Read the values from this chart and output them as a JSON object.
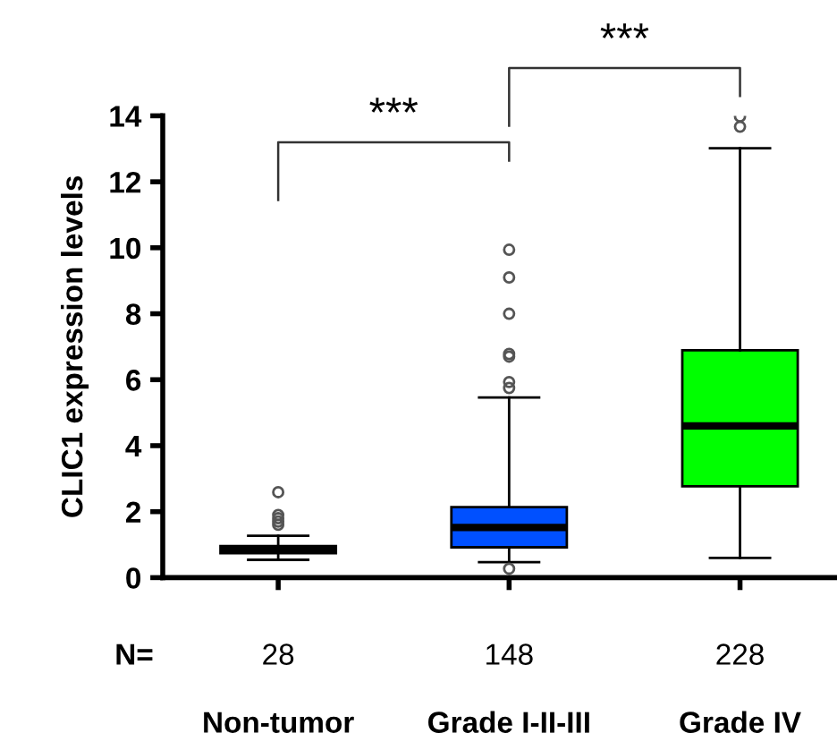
{
  "chart_data": {
    "type": "box",
    "ylabel": "CLIC1 expression levels",
    "categories": [
      "Non-tumor",
      "Grade I-II-III",
      "Grade IV"
    ],
    "colors": [
      "#8b0000",
      "#0050ff",
      "#00ff00"
    ],
    "boxes": [
      {
        "low": 0.54,
        "q1": 0.74,
        "median": 0.85,
        "q3": 0.96,
        "high": 1.27,
        "outliers": [
          1.6,
          1.7,
          1.8,
          1.9,
          2.59
        ]
      },
      {
        "low": 0.47,
        "q1": 0.92,
        "median": 1.52,
        "q3": 2.14,
        "high": 5.46,
        "outliers": [
          0.27,
          5.75,
          5.93,
          6.7,
          6.78,
          8.0,
          9.1,
          9.94
        ]
      },
      {
        "low": 0.6,
        "q1": 2.77,
        "median": 4.6,
        "q3": 6.89,
        "high": 13.02,
        "outliers": [
          13.67,
          13.98
        ]
      }
    ],
    "ylim": [
      0,
      14
    ],
    "yticks": [
      0,
      2,
      4,
      6,
      8,
      10,
      12,
      14
    ],
    "grid": false,
    "annotations": [
      "***",
      "***",
      "N=",
      "28",
      "148",
      "228"
    ]
  }
}
